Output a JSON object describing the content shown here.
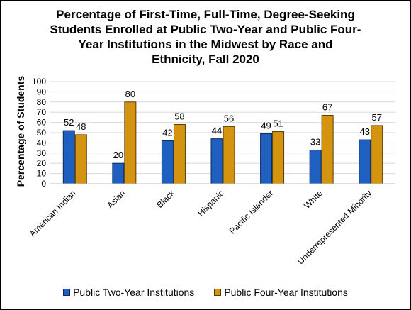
{
  "chart_data": {
    "type": "bar",
    "title": [
      "Percentage of First-Time, Full-Time, Degree-Seeking",
      "Students Enrolled at Public Two-Year and Public Four-",
      "Year Institutions in the Midwest by Race and",
      "Ethnicity, Fall 2020"
    ],
    "ylabel": "Percentage of Students",
    "xlabel": "",
    "ylim": [
      0,
      100
    ],
    "yticks": [
      0,
      10,
      20,
      30,
      40,
      50,
      60,
      70,
      80,
      90,
      100
    ],
    "grid": true,
    "legend_position": "bottom",
    "categories": [
      "American Indian",
      "Asian",
      "Black",
      "Hispanic",
      "Pacific Islander",
      "White",
      "Underrepresented Minority"
    ],
    "series": [
      {
        "name": "Public Two-Year Institutions",
        "values": [
          52,
          20,
          42,
          44,
          49,
          33,
          43
        ],
        "color": "#1f5fc0",
        "stroke": "#0d2a5c"
      },
      {
        "name": "Public Four-Year Institutions",
        "values": [
          48,
          80,
          58,
          56,
          51,
          67,
          57
        ],
        "color": "#d4940f",
        "stroke": "#5a3d05"
      }
    ]
  }
}
